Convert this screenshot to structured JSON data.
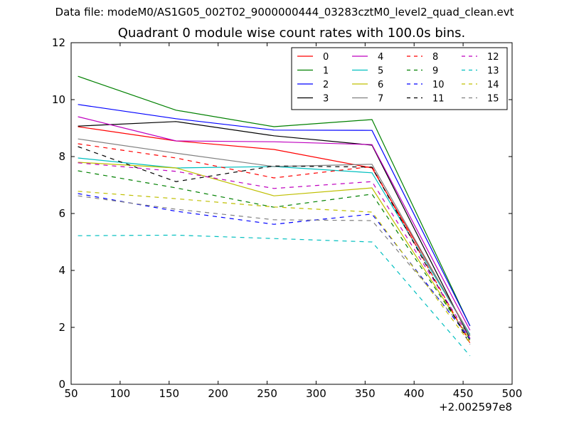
{
  "suptitle": "Data file: modeM0/AS1G05_002T02_9000000444_03283cztM0_level2_quad_clean.evt",
  "chart_data": {
    "type": "line",
    "title": "Quadrant 0 module wise count rates with 100.0s bins.",
    "xlabel": "",
    "ylabel": "",
    "x_offset_label": "+2.002597e8",
    "xlim": [
      50,
      500
    ],
    "ylim": [
      0,
      12
    ],
    "xticks": [
      50,
      100,
      150,
      200,
      250,
      300,
      350,
      400,
      450,
      500
    ],
    "yticks": [
      0,
      2,
      4,
      6,
      8,
      10,
      12
    ],
    "x": [
      57,
      157,
      257,
      357,
      457
    ],
    "grid": false,
    "legend_position": "top-right",
    "legend_columns": 4,
    "series": [
      {
        "name": "0",
        "color": "#ff0000",
        "dash": "solid",
        "values": [
          9.05,
          8.55,
          8.25,
          7.6,
          1.75
        ]
      },
      {
        "name": "1",
        "color": "#008000",
        "dash": "solid",
        "values": [
          10.82,
          9.63,
          9.05,
          9.3,
          2.05
        ]
      },
      {
        "name": "2",
        "color": "#0000ff",
        "dash": "solid",
        "values": [
          9.83,
          9.33,
          8.93,
          8.92,
          2.05
        ]
      },
      {
        "name": "3",
        "color": "#000000",
        "dash": "solid",
        "values": [
          9.07,
          9.23,
          8.73,
          8.4,
          1.6
        ]
      },
      {
        "name": "4",
        "color": "#bf00bf",
        "dash": "solid",
        "values": [
          9.4,
          8.55,
          8.52,
          8.42,
          1.9
        ]
      },
      {
        "name": "5",
        "color": "#00bfbf",
        "dash": "solid",
        "values": [
          7.95,
          7.6,
          7.65,
          7.43,
          1.75
        ]
      },
      {
        "name": "6",
        "color": "#bfbf00",
        "dash": "solid",
        "values": [
          7.8,
          7.6,
          6.62,
          6.9,
          1.55
        ]
      },
      {
        "name": "7",
        "color": "#808080",
        "dash": "solid",
        "values": [
          8.62,
          8.12,
          7.65,
          7.73,
          1.7
        ]
      },
      {
        "name": "8",
        "color": "#ff0000",
        "dash": "dashed",
        "values": [
          8.45,
          7.95,
          7.25,
          7.65,
          1.45
        ]
      },
      {
        "name": "9",
        "color": "#008000",
        "dash": "dashed",
        "values": [
          7.5,
          6.9,
          6.22,
          6.68,
          1.55
        ]
      },
      {
        "name": "10",
        "color": "#0000ff",
        "dash": "dashed",
        "values": [
          6.7,
          6.08,
          5.62,
          5.98,
          1.6
        ]
      },
      {
        "name": "11",
        "color": "#000000",
        "dash": "dashed",
        "values": [
          8.35,
          7.12,
          7.67,
          7.63,
          1.4
        ]
      },
      {
        "name": "12",
        "color": "#bf00bf",
        "dash": "dashed",
        "values": [
          7.78,
          7.48,
          6.88,
          7.12,
          1.62
        ]
      },
      {
        "name": "13",
        "color": "#00bfbf",
        "dash": "dashed",
        "values": [
          5.22,
          5.24,
          5.12,
          5.0,
          1.0
        ]
      },
      {
        "name": "14",
        "color": "#bfbf00",
        "dash": "dashed",
        "values": [
          6.78,
          6.52,
          6.23,
          6.05,
          1.45
        ]
      },
      {
        "name": "15",
        "color": "#808080",
        "dash": "dashed",
        "values": [
          6.62,
          6.15,
          5.78,
          5.75,
          1.7
        ]
      }
    ]
  }
}
